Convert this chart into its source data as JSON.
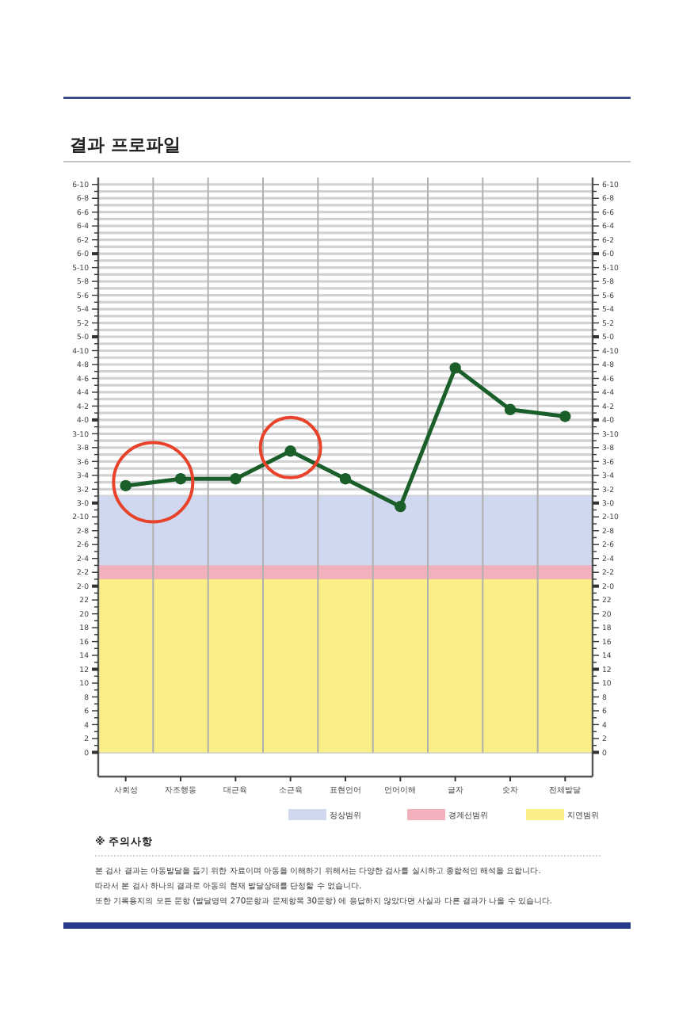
{
  "chart_data": {
    "type": "line",
    "title": "결과 프로파일",
    "categories": [
      "사회성",
      "자조행동",
      "대근육",
      "소근육",
      "표현언어",
      "언어이해",
      "글자",
      "숫자",
      "전체발달"
    ],
    "series": [
      {
        "color": "#1a5e2a",
        "values": [
          38.5,
          39.5,
          39.5,
          43.5,
          39.5,
          35.5,
          55.5,
          49.5,
          48.5
        ]
      }
    ],
    "marker": "circle",
    "line_style": "solid",
    "grid": true,
    "legend": "bottom",
    "ylim": [
      -3.5,
      83
    ],
    "y2lim": [
      -3.5,
      83
    ],
    "yticks": [
      0,
      {
        "value": 1,
        "label": null
      },
      2,
      {
        "value": 3,
        "label": null
      },
      4,
      {
        "value": 5,
        "label": null
      },
      6,
      {
        "value": 7,
        "label": null
      },
      8,
      {
        "value": 9,
        "label": null
      },
      10,
      {
        "value": 11,
        "label": null
      },
      12,
      {
        "value": 13,
        "label": null
      },
      14,
      {
        "value": 15,
        "label": null
      },
      16,
      {
        "value": 17,
        "label": null
      },
      18,
      {
        "value": 19,
        "label": null
      },
      20,
      {
        "value": 21,
        "label": null
      },
      22,
      {
        "value": 23,
        "label": null
      },
      {
        "value": 24,
        "label": "2-0"
      },
      {
        "value": 25,
        "label": null
      },
      {
        "value": 26,
        "label": "2-2"
      },
      {
        "value": 27,
        "label": null
      },
      {
        "value": 28,
        "label": "2-4"
      },
      {
        "value": 29,
        "label": null
      },
      {
        "value": 30,
        "label": "2-6"
      },
      {
        "value": 31,
        "label": null
      },
      {
        "value": 32,
        "label": "2-8"
      },
      {
        "value": 33,
        "label": null
      },
      {
        "value": 34,
        "label": "2-10"
      },
      {
        "value": 35,
        "label": null
      },
      {
        "value": 36,
        "label": "3-0"
      },
      {
        "value": 37,
        "label": null
      },
      {
        "value": 38,
        "label": "3-2"
      },
      {
        "value": 39,
        "label": null
      },
      {
        "value": 40,
        "label": "3-4"
      },
      {
        "value": 41,
        "label": null
      },
      {
        "value": 42,
        "label": "3-6"
      },
      {
        "value": 43,
        "label": null
      },
      {
        "value": 44,
        "label": "3-8"
      },
      {
        "value": 45,
        "label": null
      },
      {
        "value": 46,
        "label": "3-10"
      },
      {
        "value": 47,
        "label": null
      },
      {
        "value": 48,
        "label": "4-0"
      },
      {
        "value": 49,
        "label": null
      },
      {
        "value": 50,
        "label": "4-2"
      },
      {
        "value": 51,
        "label": null
      },
      {
        "value": 52,
        "label": "4-4"
      },
      {
        "value": 53,
        "label": null
      },
      {
        "value": 54,
        "label": "4-6"
      },
      {
        "value": 55,
        "label": null
      },
      {
        "value": 56,
        "label": "4-8"
      },
      {
        "value": 57,
        "label": null
      },
      {
        "value": 58,
        "label": "4-10"
      },
      {
        "value": 59,
        "label": null
      },
      {
        "value": 60,
        "label": "5-0"
      },
      {
        "value": 61,
        "label": null
      },
      {
        "value": 62,
        "label": "5-2"
      },
      {
        "value": 63,
        "label": null
      },
      {
        "value": 64,
        "label": "5-4"
      },
      {
        "value": 65,
        "label": null
      },
      {
        "value": 66,
        "label": "5-6"
      },
      {
        "value": 67,
        "label": null
      },
      {
        "value": 68,
        "label": "5-8"
      },
      {
        "value": 69,
        "label": null
      },
      {
        "value": 70,
        "label": "5-10"
      },
      {
        "value": 71,
        "label": null
      },
      {
        "value": 72,
        "label": "6-0"
      },
      {
        "value": 73,
        "label": null
      },
      {
        "value": 74,
        "label": "6-2"
      },
      {
        "value": 75,
        "label": null
      },
      {
        "value": 76,
        "label": "6-4"
      },
      {
        "value": 77,
        "label": null
      },
      {
        "value": 78,
        "label": "6-6"
      },
      {
        "value": 79,
        "label": null
      },
      {
        "value": 80,
        "label": "6-8"
      },
      {
        "value": 81,
        "label": null
      },
      {
        "value": 82,
        "label": "6-10"
      }
    ],
    "y2ticks": [
      0,
      {
        "value": 1,
        "label": null
      },
      2,
      {
        "value": 3,
        "label": null
      },
      4,
      {
        "value": 5,
        "label": null
      },
      6,
      {
        "value": 7,
        "label": null
      },
      8,
      {
        "value": 9,
        "label": null
      },
      10,
      {
        "value": 11,
        "label": null
      },
      12,
      {
        "value": 13,
        "label": null
      },
      14,
      {
        "value": 15,
        "label": null
      },
      16,
      {
        "value": 17,
        "label": null
      },
      18,
      {
        "value": 19,
        "label": null
      },
      20,
      {
        "value": 21,
        "label": null
      },
      22,
      {
        "value": 23,
        "label": null
      },
      {
        "value": 24,
        "label": "2-0"
      },
      {
        "value": 25,
        "label": null
      },
      {
        "value": 26,
        "label": "2-2"
      },
      {
        "value": 27,
        "label": null
      },
      {
        "value": 28,
        "label": "2-4"
      },
      {
        "value": 29,
        "label": null
      },
      {
        "value": 30,
        "label": "2-6"
      },
      {
        "value": 31,
        "label": null
      },
      {
        "value": 32,
        "label": "2-8"
      },
      {
        "value": 33,
        "label": null
      },
      {
        "value": 34,
        "label": "2-10"
      },
      {
        "value": 35,
        "label": null
      },
      {
        "value": 36,
        "label": "3-0"
      },
      {
        "value": 37,
        "label": null
      },
      {
        "value": 38,
        "label": "3-2"
      },
      {
        "value": 39,
        "label": null
      },
      {
        "value": 40,
        "label": "3-4"
      },
      {
        "value": 41,
        "label": null
      },
      {
        "value": 42,
        "label": "3-6"
      },
      {
        "value": 43,
        "label": null
      },
      {
        "value": 44,
        "label": "3-8"
      },
      {
        "value": 45,
        "label": null
      },
      {
        "value": 46,
        "label": "3-10"
      },
      {
        "value": 47,
        "label": null
      },
      {
        "value": 48,
        "label": "4-0"
      },
      {
        "value": 49,
        "label": null
      },
      {
        "value": 50,
        "label": "4-2"
      },
      {
        "value": 51,
        "label": null
      },
      {
        "value": 52,
        "label": "4-4"
      },
      {
        "value": 53,
        "label": null
      },
      {
        "value": 54,
        "label": "4-6"
      },
      {
        "value": 55,
        "label": null
      },
      {
        "value": 56,
        "label": "4-8"
      },
      {
        "value": 57,
        "label": null
      },
      {
        "value": 58,
        "label": "4-10"
      },
      {
        "value": 59,
        "label": null
      },
      {
        "value": 60,
        "label": "5-0"
      },
      {
        "value": 61,
        "label": null
      },
      {
        "value": 62,
        "label": "5-2"
      },
      {
        "value": 63,
        "label": null
      },
      {
        "value": 64,
        "label": "5-4"
      },
      {
        "value": 65,
        "label": null
      },
      {
        "value": 66,
        "label": "5-6"
      },
      {
        "value": 67,
        "label": null
      },
      {
        "value": 68,
        "label": "5-8"
      },
      {
        "value": 69,
        "label": null
      },
      {
        "value": 70,
        "label": "5-10"
      },
      {
        "value": 71,
        "label": null
      },
      {
        "value": 72,
        "label": "6-0"
      },
      {
        "value": 73,
        "label": null
      },
      {
        "value": 74,
        "label": "6-2"
      },
      {
        "value": 75,
        "label": null
      },
      {
        "value": 76,
        "label": "6-4"
      },
      {
        "value": 77,
        "label": null
      },
      {
        "value": 78,
        "label": "6-6"
      },
      {
        "value": 79,
        "label": null
      },
      {
        "value": 80,
        "label": "6-8"
      },
      {
        "value": 81,
        "label": null
      },
      {
        "value": 82,
        "label": "6-10"
      }
    ],
    "bands": [
      {
        "axis": "y",
        "from": 27,
        "to": 37,
        "label": "정상범위",
        "color": "#cfd8ee"
      },
      {
        "axis": "y",
        "from": 25,
        "to": 27,
        "label": "경계선범위",
        "color": "#f2b0bc"
      },
      {
        "axis": "y",
        "from": 0,
        "to": 25,
        "label": "지연범위",
        "color": "#faee88"
      }
    ],
    "annotations": [
      "※ 주의사항",
      "본 검사 결과는 아동발달을 돕기 위한 자료이며 아동을 이해하기 위해서는 다양한 검사를 실시하고 종합적인 해석을 요합니다.",
      "따라서 본 검사 하나의 결과로 아동의 현재 발달상태를 단정할 수 없습니다.",
      "또한 기록용지의 모든 문항 (발달영역 270문항과 문제항목 30문항) 에 응답하지 않았다면 사실과 다른 결과가 나올 수 있습니다."
    ]
  }
}
